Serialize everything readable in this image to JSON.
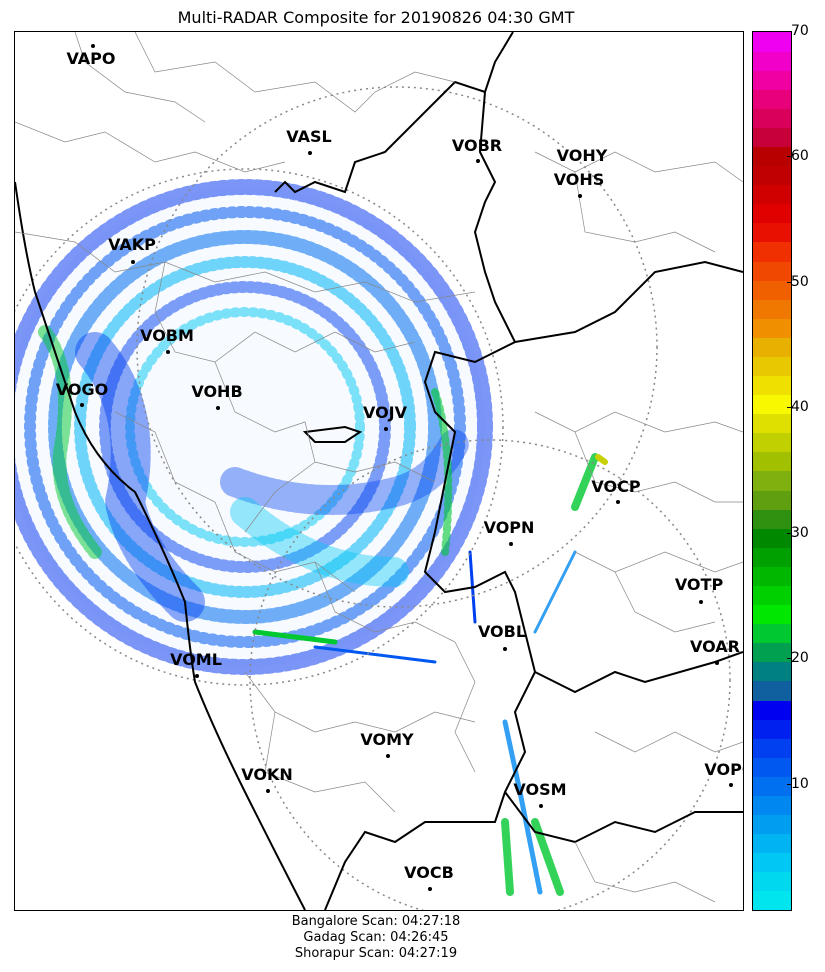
{
  "title": "Multi-RADAR Composite for 20190826 04:30 GMT",
  "stations": [
    {
      "code": "VAPO"
    },
    {
      "code": "VASL"
    },
    {
      "code": "VOBR"
    },
    {
      "code": "VOHY"
    },
    {
      "code": "VOHS"
    },
    {
      "code": "VAKP"
    },
    {
      "code": "VOBM"
    },
    {
      "code": "VOGO"
    },
    {
      "code": "VOHB"
    },
    {
      "code": "VOJV"
    },
    {
      "code": "VOCP"
    },
    {
      "code": "VOPN"
    },
    {
      "code": "VOTP"
    },
    {
      "code": "VOBL"
    },
    {
      "code": "VOAR"
    },
    {
      "code": "VOML"
    },
    {
      "code": "VOMY"
    },
    {
      "code": "VOKN"
    },
    {
      "code": "VOPC"
    },
    {
      "code": "VOSM"
    },
    {
      "code": "VOCB"
    }
  ],
  "colorbar": {
    "min": 0,
    "max": 70,
    "ticks": [
      "10",
      "20",
      "30",
      "40",
      "50",
      "60",
      "70"
    ],
    "colors": [
      "#00e5ee",
      "#00d8f0",
      "#00c8f4",
      "#00b4f4",
      "#009ef0",
      "#0088f0",
      "#0070f0",
      "#0058f0",
      "#0040f0",
      "#0020f0",
      "#0000f0",
      "#1060a0",
      "#008080",
      "#00a050",
      "#00c830",
      "#00e800",
      "#00d000",
      "#00b800",
      "#00a000",
      "#008800",
      "#309010",
      "#60a010",
      "#80b010",
      "#a0c000",
      "#c0d000",
      "#e0e000",
      "#f8f800",
      "#f0e000",
      "#e8c800",
      "#e8b000",
      "#f09000",
      "#f07800",
      "#f06000",
      "#f04800",
      "#f03000",
      "#e81000",
      "#e00000",
      "#d00000",
      "#c00000",
      "#b80000",
      "#c8003a",
      "#d8005a",
      "#e8007a",
      "#f000a0",
      "#f000c8",
      "#f000f0"
    ]
  },
  "scan_info": [
    "Bangalore Scan: 04:27:18",
    "Gadag Scan: 04:26:45",
    "Shorapur Scan: 04:27:19"
  ]
}
